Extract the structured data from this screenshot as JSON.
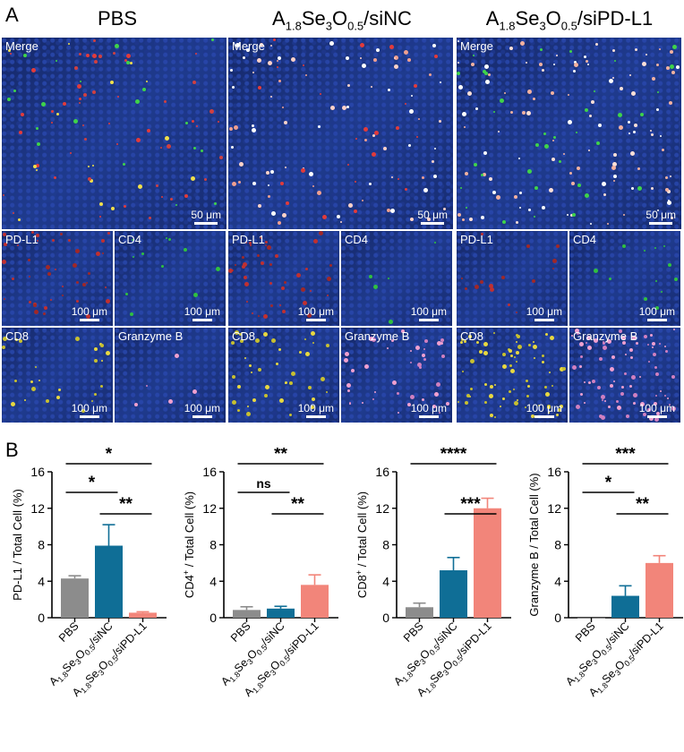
{
  "panel_a_letter": "A",
  "panel_b_letter": "B",
  "columns": [
    {
      "title_main": "PBS",
      "title_html": ""
    },
    {
      "title_prefix": "A",
      "s1": "1.8",
      "mid1": "Se",
      "s2": "3",
      "mid2": "O",
      "s3": "0.5",
      "suffix": "/siNC"
    },
    {
      "title_prefix": "A",
      "s1": "1.8",
      "mid1": "Se",
      "s2": "3",
      "mid2": "O",
      "s3": "0.5",
      "suffix": "/siPD-L1"
    }
  ],
  "image_labels": {
    "merge": "Merge",
    "pdl1": "PD-L1",
    "cd4": "CD4",
    "cd8": "CD8",
    "granzyme": "Granzyme B"
  },
  "scalebars": {
    "large": "50 μm",
    "small": "100 μm"
  },
  "colors": {
    "pbs": "#8c8c8c",
    "sinc": "#0f6e96",
    "sipdl1": "#f2857a"
  },
  "chart_data": [
    {
      "type": "bar",
      "ylabel": "PD-L1 / Total Cell (%)",
      "ylim": [
        0,
        16
      ],
      "yticks": [
        0,
        4,
        8,
        12,
        16
      ],
      "categories": [
        "PBS",
        "A1.8Se3O0.5/siNC",
        "A1.8Se3O0.5/siPD-L1"
      ],
      "values": [
        4.3,
        7.9,
        0.55
      ],
      "errors": [
        0.3,
        2.3,
        0.1
      ],
      "sig": [
        {
          "from": 0,
          "to": 1,
          "label": "*",
          "level": 1
        },
        {
          "from": 1,
          "to": 2,
          "label": "**",
          "level": 0
        },
        {
          "from": 0,
          "to": 2,
          "label": "*",
          "level": 2
        }
      ]
    },
    {
      "type": "bar",
      "ylabel": "CD4+ / Total Cell (%)",
      "ylabel_base": "CD4",
      "ylabel_sup": "+",
      "ylabel_rest": " / Total Cell (%)",
      "ylim": [
        0,
        16
      ],
      "yticks": [
        0,
        4,
        8,
        12,
        16
      ],
      "categories": [
        "PBS",
        "A1.8Se3O0.5/siNC",
        "A1.8Se3O0.5/siPD-L1"
      ],
      "values": [
        0.85,
        1.0,
        3.6
      ],
      "errors": [
        0.35,
        0.25,
        1.1
      ],
      "sig": [
        {
          "from": 0,
          "to": 1,
          "label": "ns",
          "level": 1
        },
        {
          "from": 1,
          "to": 2,
          "label": "**",
          "level": 0
        },
        {
          "from": 0,
          "to": 2,
          "label": "**",
          "level": 2
        }
      ]
    },
    {
      "type": "bar",
      "ylabel": "CD8+ / Total Cell (%)",
      "ylabel_base": "CD8",
      "ylabel_sup": "+",
      "ylabel_rest": " / Total Cell (%)",
      "ylim": [
        0,
        16
      ],
      "yticks": [
        0,
        4,
        8,
        12,
        16
      ],
      "categories": [
        "PBS",
        "A1.8Se3O0.5/siNC",
        "A1.8Se3O0.5/siPD-L1"
      ],
      "values": [
        1.15,
        5.2,
        12.0
      ],
      "errors": [
        0.45,
        1.4,
        1.1
      ],
      "sig": [
        {
          "from": 1,
          "to": 2,
          "label": "***",
          "level": 0
        },
        {
          "from": 0,
          "to": 2,
          "label": "****",
          "level": 2
        }
      ]
    },
    {
      "type": "bar",
      "ylabel": "Granzyme B / Total Cell (%)",
      "ylim": [
        0,
        16
      ],
      "yticks": [
        0,
        4,
        8,
        12,
        16
      ],
      "categories": [
        "PBS",
        "A1.8Se3O0.5/siNC",
        "A1.8Se3O0.5/siPD-L1"
      ],
      "values": [
        0.0,
        2.4,
        6.0
      ],
      "errors": [
        0.0,
        1.1,
        0.8
      ],
      "sig": [
        {
          "from": 0,
          "to": 1,
          "label": "*",
          "level": 1
        },
        {
          "from": 1,
          "to": 2,
          "label": "**",
          "level": 0
        },
        {
          "from": 0,
          "to": 2,
          "label": "***",
          "level": 2
        }
      ]
    }
  ]
}
